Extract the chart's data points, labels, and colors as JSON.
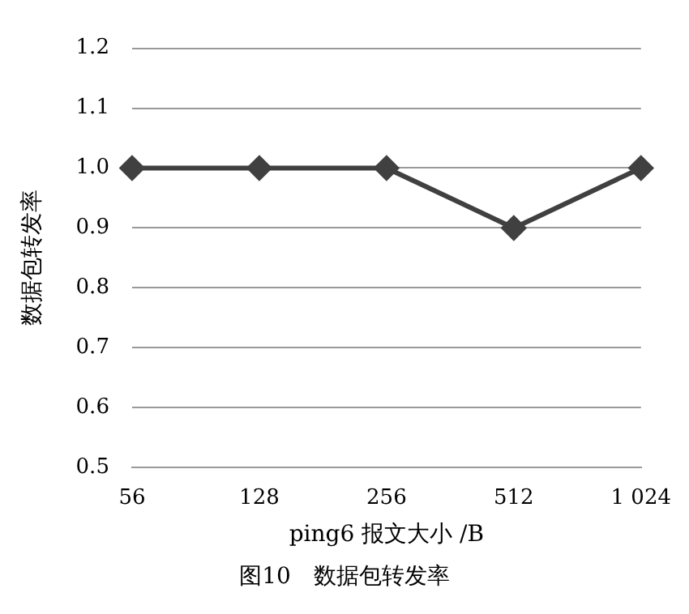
{
  "chart_data": {
    "type": "line",
    "xlabel": "ping6 报文大小 /B",
    "ylabel": "数据包转发率",
    "categories": [
      "56",
      "128",
      "256",
      "512",
      "1 024"
    ],
    "series": [
      {
        "color": "#404040",
        "values": [
          1.0,
          1.0,
          1.0,
          0.9,
          1.0
        ]
      }
    ],
    "ylim": [
      0.5,
      1.2
    ],
    "yticks": [
      {
        "value": 0.5,
        "label": "0.5"
      },
      {
        "value": 0.6,
        "label": "0.6"
      },
      {
        "value": 0.7,
        "label": "0.7"
      },
      {
        "value": 0.8,
        "label": "0.8"
      },
      {
        "value": 0.9,
        "label": "0.9"
      },
      {
        "value": 1.0,
        "label": "1.0"
      },
      {
        "value": 1.1,
        "label": "1.1"
      },
      {
        "value": 1.2,
        "label": "1.2"
      }
    ],
    "grid": "y",
    "legend": false,
    "marker": "diamond",
    "line_style": "solid",
    "annotations": [
      "图10　数据包转发率"
    ]
  }
}
